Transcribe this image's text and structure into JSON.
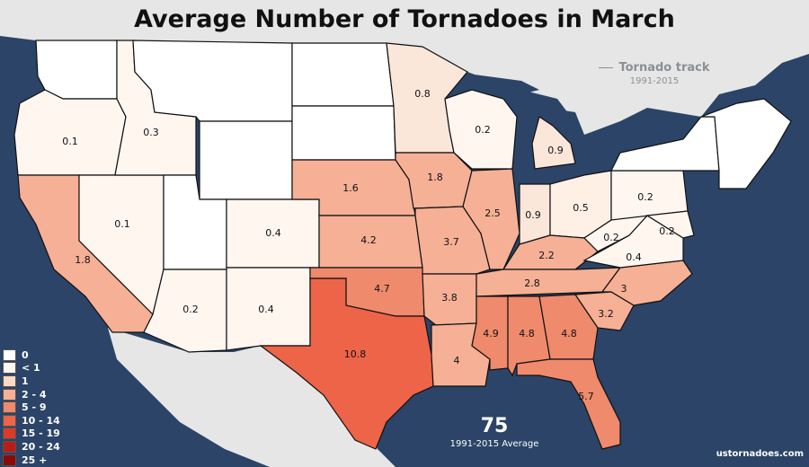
{
  "title": "Average Number of Tornadoes in March",
  "track_legend": {
    "label": "Tornado track",
    "period": "1991-2015"
  },
  "total": {
    "value": "75",
    "caption": "1991-2015 Average"
  },
  "credit": "ustornadoes.com",
  "colors": {
    "ocean": "#2b4467",
    "land": "#e6e6e6",
    "border": "#111111"
  },
  "legend": [
    {
      "label": "0",
      "color": "#ffffff"
    },
    {
      "label": "< 1",
      "color": "#fff6f0"
    },
    {
      "label": "1",
      "color": "#fbd9c6"
    },
    {
      "label": "2 - 4",
      "color": "#f5b096"
    },
    {
      "label": "5 - 9",
      "color": "#ef8a6c"
    },
    {
      "label": "10 - 14",
      "color": "#ed6448"
    },
    {
      "label": "15 - 19",
      "color": "#d93b28"
    },
    {
      "label": "20 - 24",
      "color": "#bb1c16"
    },
    {
      "label": "25 +",
      "color": "#8b0a0a"
    }
  ],
  "states": [
    {
      "name": "WA",
      "label": "",
      "color": "#ffffff"
    },
    {
      "name": "OR",
      "label": "0.1",
      "color": "#fff6f0"
    },
    {
      "name": "CA",
      "label": "1.8",
      "color": "#f5b096"
    },
    {
      "name": "NV",
      "label": "0.1",
      "color": "#fff6f0"
    },
    {
      "name": "ID",
      "label": "0.3",
      "color": "#fff6f0"
    },
    {
      "name": "MT",
      "label": "",
      "color": "#ffffff"
    },
    {
      "name": "WY",
      "label": "",
      "color": "#ffffff"
    },
    {
      "name": "UT",
      "label": "",
      "color": "#ffffff"
    },
    {
      "name": "AZ",
      "label": "0.2",
      "color": "#fff6f0"
    },
    {
      "name": "CO",
      "label": "0.4",
      "color": "#fff6f0"
    },
    {
      "name": "NM",
      "label": "0.4",
      "color": "#fff6f0"
    },
    {
      "name": "ND",
      "label": "",
      "color": "#ffffff"
    },
    {
      "name": "SD",
      "label": "",
      "color": "#ffffff"
    },
    {
      "name": "NE",
      "label": "1.6",
      "color": "#f5b096"
    },
    {
      "name": "KS",
      "label": "4.2",
      "color": "#f5b096"
    },
    {
      "name": "OK",
      "label": "4.7",
      "color": "#ef8a6c"
    },
    {
      "name": "TX",
      "label": "10.8",
      "color": "#ed6448"
    },
    {
      "name": "MN",
      "label": "0.8",
      "color": "#fbe6da"
    },
    {
      "name": "IA",
      "label": "1.8",
      "color": "#f5b096"
    },
    {
      "name": "MO",
      "label": "3.7",
      "color": "#f5b096"
    },
    {
      "name": "AR",
      "label": "3.8",
      "color": "#f5b096"
    },
    {
      "name": "LA",
      "label": "4",
      "color": "#f5b096"
    },
    {
      "name": "WI",
      "label": "0.2",
      "color": "#fff6f0"
    },
    {
      "name": "IL",
      "label": "2.5",
      "color": "#f5b096"
    },
    {
      "name": "MI",
      "label": "0.9",
      "color": "#fbe6da"
    },
    {
      "name": "IN",
      "label": "0.9",
      "color": "#fbe6da"
    },
    {
      "name": "OH",
      "label": "0.5",
      "color": "#fff0e6"
    },
    {
      "name": "KY",
      "label": "2.2",
      "color": "#f5b096"
    },
    {
      "name": "TN",
      "label": "2.8",
      "color": "#f5b096"
    },
    {
      "name": "MS",
      "label": "4.9",
      "color": "#ef8a6c"
    },
    {
      "name": "AL",
      "label": "4.8",
      "color": "#ef8a6c"
    },
    {
      "name": "GA",
      "label": "4.8",
      "color": "#ef8a6c"
    },
    {
      "name": "FL",
      "label": "5.7",
      "color": "#ef8a6c"
    },
    {
      "name": "SC",
      "label": "3.2",
      "color": "#f5b096"
    },
    {
      "name": "NC",
      "label": "3",
      "color": "#f5b096"
    },
    {
      "name": "VA",
      "label": "0.4",
      "color": "#fff6f0"
    },
    {
      "name": "WV",
      "label": "0.2",
      "color": "#fff6f0"
    },
    {
      "name": "PA",
      "label": "0.2",
      "color": "#fff6f0"
    },
    {
      "name": "MD",
      "label": "0.2",
      "color": "#fff6f0"
    },
    {
      "name": "NY",
      "label": "",
      "color": "#ffffff"
    },
    {
      "name": "NE-states",
      "label": "",
      "color": "#ffffff"
    }
  ]
}
